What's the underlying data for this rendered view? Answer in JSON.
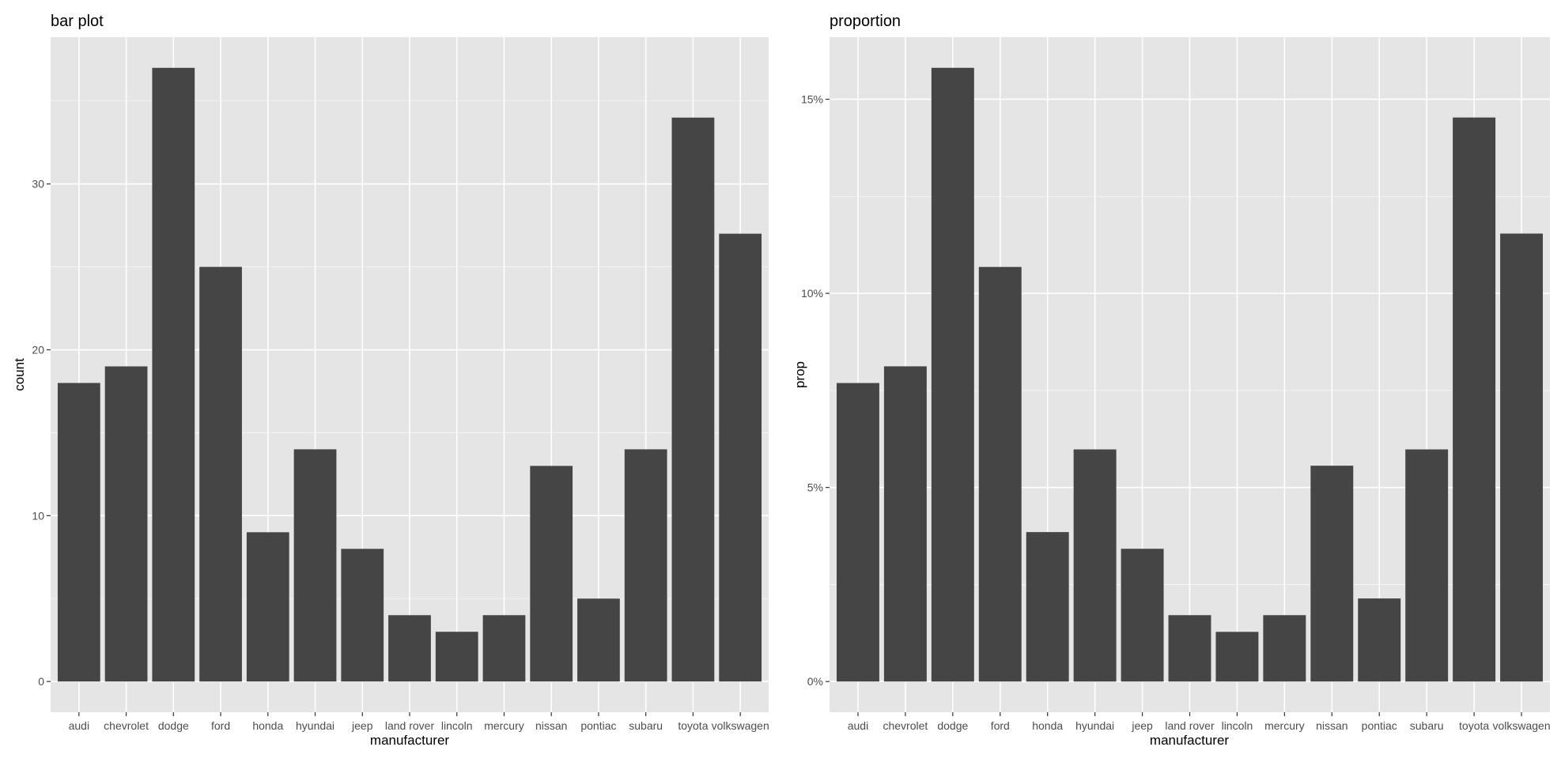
{
  "chart_data": [
    {
      "type": "bar",
      "title": "bar plot",
      "xlabel": "manufacturer",
      "ylabel": "count",
      "categories": [
        "audi",
        "chevrolet",
        "dodge",
        "ford",
        "honda",
        "hyundai",
        "jeep",
        "land rover",
        "lincoln",
        "mercury",
        "nissan",
        "pontiac",
        "subaru",
        "toyota",
        "volkswagen"
      ],
      "values": [
        18,
        19,
        37,
        25,
        9,
        14,
        8,
        4,
        3,
        4,
        13,
        5,
        14,
        34,
        27
      ],
      "ylim": [
        -1.85,
        38.85
      ],
      "yticks": [
        0,
        10,
        20,
        30
      ],
      "ytick_labels": [
        "0",
        "10",
        "20",
        "30"
      ],
      "grid": true,
      "background_color": "#e5e5e5",
      "bar_color": "#454545",
      "grid_color": "#ffffff"
    },
    {
      "type": "bar",
      "title": "proportion",
      "xlabel": "manufacturer",
      "ylabel": "prop",
      "categories": [
        "audi",
        "chevrolet",
        "dodge",
        "ford",
        "honda",
        "hyundai",
        "jeep",
        "land rover",
        "lincoln",
        "mercury",
        "nissan",
        "pontiac",
        "subaru",
        "toyota",
        "volkswagen"
      ],
      "values": [
        0.0769,
        0.0812,
        0.1581,
        0.1068,
        0.0385,
        0.0598,
        0.0342,
        0.0171,
        0.0128,
        0.0171,
        0.0556,
        0.0214,
        0.0598,
        0.1453,
        0.1154
      ],
      "ylim": [
        -0.0079,
        0.166
      ],
      "yticks": [
        0,
        0.05,
        0.1,
        0.15
      ],
      "ytick_labels": [
        "0%",
        "5%",
        "10%",
        "15%"
      ],
      "grid": true,
      "background_color": "#e5e5e5",
      "bar_color": "#454545",
      "grid_color": "#ffffff"
    }
  ]
}
